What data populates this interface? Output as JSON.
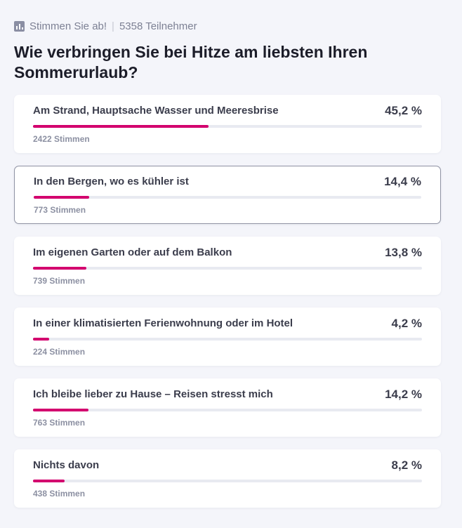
{
  "header": {
    "icon": "bar-chart-icon",
    "cta": "Stimmen Sie ab!",
    "separator": "|",
    "participants": "5358 Teilnehmer"
  },
  "question": "Wie verbringen Sie bei Hitze am liebsten Ihren Sommerurlaub?",
  "accent_color": "#d3006e",
  "options": [
    {
      "label": "Am Strand, Hauptsache Wasser und Meeresbrise",
      "percent": "45,2 %",
      "share": 0.452,
      "votes": "2422 Stimmen",
      "selected": false
    },
    {
      "label": "In den Bergen, wo es kühler ist",
      "percent": "14,4 %",
      "share": 0.144,
      "votes": "773 Stimmen",
      "selected": true
    },
    {
      "label": "Im eigenen Garten oder auf dem Balkon",
      "percent": "13,8 %",
      "share": 0.138,
      "votes": "739 Stimmen",
      "selected": false
    },
    {
      "label": "In einer klimatisierten Ferienwohnung oder im Hotel",
      "percent": "4,2 %",
      "share": 0.042,
      "votes": "224 Stimmen",
      "selected": false
    },
    {
      "label": "Ich bleibe lieber zu Hause – Reisen stresst mich",
      "percent": "14,2 %",
      "share": 0.142,
      "votes": "763 Stimmen",
      "selected": false
    },
    {
      "label": "Nichts davon",
      "percent": "8,2 %",
      "share": 0.082,
      "votes": "438 Stimmen",
      "selected": false
    }
  ]
}
